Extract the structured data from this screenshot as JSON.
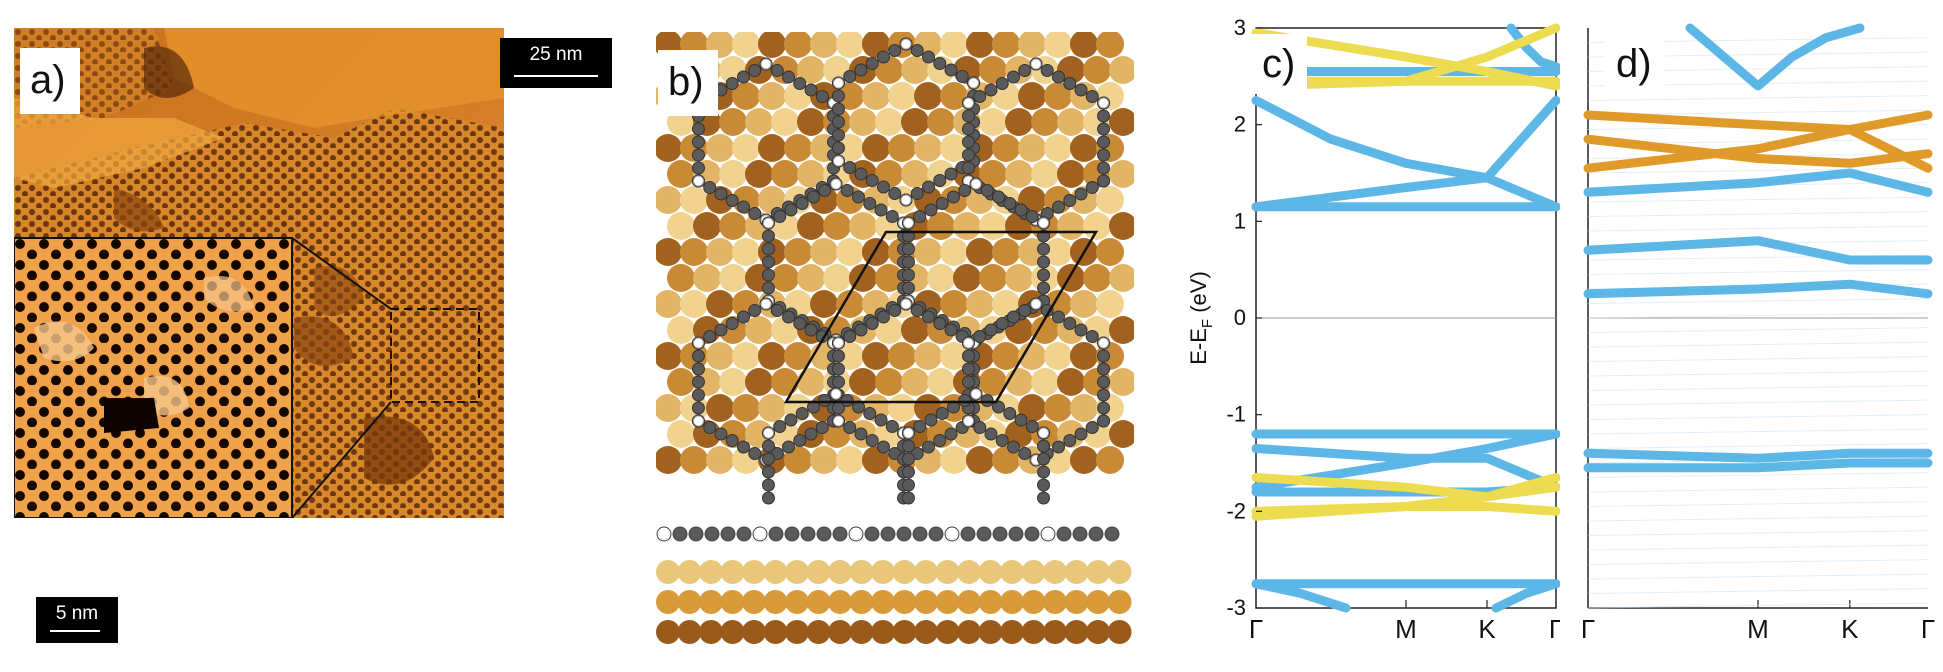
{
  "figure": {
    "panel_a": {
      "label": "a)",
      "scale_main": "25 nm",
      "scale_inset": "5 nm"
    },
    "panel_b": {
      "label": "b)"
    },
    "panel_c": {
      "label": "c)"
    },
    "panel_d": {
      "label": "d)"
    }
  },
  "colors": {
    "blue": "#5cb6e6",
    "yellow": "#eedc50",
    "orange": "#e09a2a",
    "gray": "#555555"
  },
  "chart_data": [
    {
      "type": "line",
      "panel": "c)",
      "ylabel": "E-E_F (eV)",
      "ylabel_main": "E-E",
      "ylabel_sub": "F",
      "ylabel_unit": " (eV)",
      "ylim": [
        -3,
        3
      ],
      "yticks": [
        "3",
        "2",
        "1",
        "0",
        "-1",
        "-2",
        "-3"
      ],
      "ytick_values": [
        3,
        2,
        1,
        0,
        -1,
        -2,
        -3
      ],
      "xticks": [
        "Γ",
        "M",
        "K",
        "Γ"
      ],
      "xtick_positions": [
        0,
        0.5,
        0.77,
        1.0
      ],
      "series": [
        {
          "name": "blue-1",
          "color": "blue",
          "x": [
            0,
            0.25,
            0.5,
            0.77,
            1.0
          ],
          "values": [
            2.25,
            1.85,
            1.6,
            1.45,
            2.25
          ]
        },
        {
          "name": "blue-2",
          "color": "blue",
          "x": [
            0,
            0.25,
            0.5,
            0.77,
            1.0
          ],
          "values": [
            1.15,
            1.25,
            1.35,
            1.45,
            1.15
          ]
        },
        {
          "name": "blue-3",
          "color": "blue",
          "x": [
            0,
            0.5,
            0.77,
            1.0
          ],
          "values": [
            1.15,
            1.15,
            1.15,
            1.15
          ]
        },
        {
          "name": "blue-4",
          "color": "blue",
          "x": [
            0,
            0.5,
            0.77,
            1.0
          ],
          "values": [
            2.55,
            2.55,
            2.55,
            2.55
          ]
        },
        {
          "name": "blue-5",
          "color": "blue",
          "x": [
            0.85,
            0.9,
            0.95,
            1.0
          ],
          "values": [
            3.0,
            2.8,
            2.65,
            2.6
          ]
        },
        {
          "name": "blue-6",
          "color": "blue",
          "x": [
            0,
            0.5,
            0.77,
            1.0
          ],
          "values": [
            -1.2,
            -1.2,
            -1.2,
            -1.2
          ]
        },
        {
          "name": "blue-7",
          "color": "blue",
          "x": [
            0,
            0.5,
            0.77,
            1.0
          ],
          "values": [
            -1.75,
            -1.5,
            -1.35,
            -1.2
          ]
        },
        {
          "name": "blue-8",
          "color": "blue",
          "x": [
            0,
            0.5,
            0.77,
            1.0
          ],
          "values": [
            -1.35,
            -1.45,
            -1.45,
            -1.75
          ]
        },
        {
          "name": "blue-9",
          "color": "blue",
          "x": [
            0,
            0.5,
            0.77,
            1.0
          ],
          "values": [
            -1.8,
            -1.8,
            -1.8,
            -1.75
          ]
        },
        {
          "name": "blue-10",
          "color": "blue",
          "x": [
            0,
            0.5,
            0.77,
            1.0
          ],
          "values": [
            -2.75,
            -2.75,
            -2.75,
            -2.75
          ]
        },
        {
          "name": "blue-11",
          "color": "blue",
          "x": [
            0.0,
            0.15,
            0.3
          ],
          "values": [
            -2.75,
            -2.85,
            -3.0
          ]
        },
        {
          "name": "blue-12",
          "color": "blue",
          "x": [
            0.8,
            0.9,
            1.0
          ],
          "values": [
            -3.0,
            -2.85,
            -2.75
          ]
        },
        {
          "name": "yellow-1",
          "color": "yellow",
          "x": [
            0,
            0.5,
            0.77,
            1.0
          ],
          "values": [
            -1.65,
            -1.75,
            -1.85,
            -1.65
          ]
        },
        {
          "name": "yellow-2",
          "color": "yellow",
          "x": [
            0,
            0.5,
            0.77,
            1.0
          ],
          "values": [
            -2.0,
            -1.95,
            -1.95,
            -2.0
          ]
        },
        {
          "name": "yellow-3",
          "color": "yellow",
          "x": [
            0,
            0.5,
            0.77,
            1.0
          ],
          "values": [
            -2.05,
            -1.95,
            -1.85,
            -1.75
          ]
        },
        {
          "name": "yellow-4",
          "color": "yellow",
          "x": [
            0,
            0.5,
            0.77,
            1.0
          ],
          "values": [
            2.95,
            2.7,
            2.55,
            2.4
          ]
        },
        {
          "name": "yellow-5",
          "color": "yellow",
          "x": [
            0,
            0.5,
            0.77,
            1.0
          ],
          "values": [
            2.4,
            2.45,
            2.7,
            3.0
          ]
        },
        {
          "name": "yellow-6",
          "color": "yellow",
          "x": [
            0,
            0.5,
            0.77,
            1.0
          ],
          "values": [
            2.45,
            2.45,
            2.45,
            2.45
          ]
        }
      ]
    },
    {
      "type": "line",
      "panel": "d)",
      "ylim": [
        -3,
        3
      ],
      "xticks": [
        "Γ",
        "M",
        "K",
        "Γ"
      ],
      "xtick_positions": [
        0,
        0.5,
        0.77,
        1.0
      ],
      "series": [
        {
          "name": "orange-1",
          "color": "orange",
          "x": [
            0,
            0.5,
            0.77,
            1.0
          ],
          "values": [
            2.1,
            2.0,
            1.95,
            2.1
          ]
        },
        {
          "name": "orange-2",
          "color": "orange",
          "x": [
            0,
            0.5,
            0.77,
            1.0
          ],
          "values": [
            1.55,
            1.75,
            1.95,
            1.55
          ]
        },
        {
          "name": "orange-3",
          "color": "orange",
          "x": [
            0,
            0.5,
            0.77,
            1.0
          ],
          "values": [
            1.85,
            1.65,
            1.6,
            1.7
          ]
        },
        {
          "name": "blue-1",
          "color": "blue",
          "x": [
            0,
            0.5,
            0.77,
            1.0
          ],
          "values": [
            1.3,
            1.4,
            1.5,
            1.3
          ]
        },
        {
          "name": "blue-2",
          "color": "blue",
          "x": [
            0,
            0.5,
            0.77,
            1.0
          ],
          "values": [
            0.25,
            0.3,
            0.35,
            0.25
          ]
        },
        {
          "name": "blue-3",
          "color": "blue",
          "x": [
            0,
            0.5,
            0.77,
            1.0
          ],
          "values": [
            0.7,
            0.8,
            0.6,
            0.6
          ]
        },
        {
          "name": "blue-4",
          "color": "blue",
          "x": [
            0,
            0.5,
            0.77,
            1.0
          ],
          "values": [
            -1.4,
            -1.45,
            -1.4,
            -1.4
          ]
        },
        {
          "name": "blue-5",
          "color": "blue",
          "x": [
            0.3,
            0.4,
            0.5,
            0.6,
            0.7,
            0.8
          ],
          "values": [
            3.0,
            2.7,
            2.4,
            2.7,
            2.9,
            3.0
          ]
        },
        {
          "name": "blue-6",
          "color": "blue",
          "x": [
            0,
            0.5,
            0.77,
            1.0
          ],
          "values": [
            -1.55,
            -1.55,
            -1.5,
            -1.5
          ]
        }
      ]
    }
  ]
}
